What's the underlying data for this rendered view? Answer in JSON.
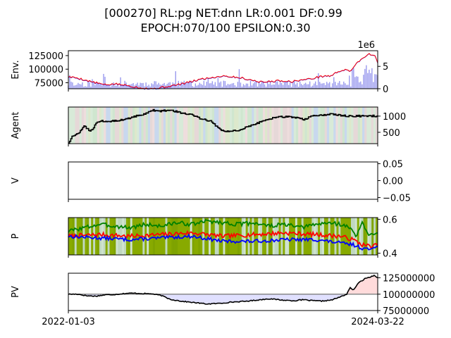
{
  "title_line1": "[000270] RL:pg NET:dnn LR:0.001 DF:0.99",
  "title_line2": "EPOCH:070/100 EPSILON:0.30",
  "chart_data": [
    {
      "type": "line",
      "panel": "env",
      "ylabel": "Env.",
      "left_ticks": [
        "125000",
        "100000",
        "75000"
      ],
      "left_tick_values": [
        125000,
        100000,
        75000
      ],
      "left_ylim": [
        64000,
        134000
      ],
      "right_offset_label": "1e6",
      "right_ticks": [
        "5",
        "0"
      ],
      "right_tick_values": [
        5,
        0
      ],
      "right_ylim": [
        0,
        8.5
      ],
      "series": [
        {
          "kind": "price-line",
          "color": "#ff0000",
          "anchors": [
            [
              0,
              86000
            ],
            [
              3,
              84000
            ],
            [
              6,
              79000
            ],
            [
              9,
              75000
            ],
            [
              12,
              71000
            ],
            [
              15,
              73000
            ],
            [
              19,
              70000
            ],
            [
              23,
              66000
            ],
            [
              27,
              64000
            ],
            [
              31,
              67000
            ],
            [
              35,
              71000
            ],
            [
              39,
              76000
            ],
            [
              43,
              82000
            ],
            [
              47,
              85000
            ],
            [
              50,
              88000
            ],
            [
              53,
              86000
            ],
            [
              56,
              84000
            ],
            [
              60,
              79000
            ],
            [
              63,
              76000
            ],
            [
              66,
              78000
            ],
            [
              69,
              79000
            ],
            [
              72,
              77000
            ],
            [
              75,
              80000
            ],
            [
              78,
              82000
            ],
            [
              82,
              87000
            ],
            [
              85,
              88000
            ],
            [
              87,
              95000
            ],
            [
              89,
              99000
            ],
            [
              91,
              96000
            ],
            [
              93,
              110000
            ],
            [
              95,
              120000
            ],
            [
              97,
              128000
            ],
            [
              99,
              126000
            ],
            [
              100,
              110000
            ]
          ]
        },
        {
          "kind": "volume-bars",
          "color": "#9999ee"
        }
      ]
    },
    {
      "type": "line",
      "panel": "agent",
      "ylabel": "Agent",
      "ticks": [
        "1000",
        "500"
      ],
      "tick_values": [
        1000,
        500
      ],
      "ylim": [
        150,
        1280
      ],
      "series": [
        {
          "kind": "holdings-step",
          "color": "#000000",
          "anchors": [
            [
              0,
              180
            ],
            [
              1,
              350
            ],
            [
              3,
              450
            ],
            [
              5,
              700
            ],
            [
              7,
              520
            ],
            [
              9,
              780
            ],
            [
              11,
              850
            ],
            [
              14,
              850
            ],
            [
              17,
              880
            ],
            [
              20,
              950
            ],
            [
              24,
              1050
            ],
            [
              27,
              1180
            ],
            [
              30,
              1150
            ],
            [
              33,
              1200
            ],
            [
              36,
              1100
            ],
            [
              40,
              1030
            ],
            [
              43,
              900
            ],
            [
              46,
              860
            ],
            [
              49,
              580
            ],
            [
              52,
              520
            ],
            [
              55,
              560
            ],
            [
              58,
              680
            ],
            [
              61,
              780
            ],
            [
              64,
              900
            ],
            [
              67,
              960
            ],
            [
              70,
              980
            ],
            [
              73,
              960
            ],
            [
              76,
              900
            ],
            [
              79,
              1000
            ],
            [
              82,
              1020
            ],
            [
              85,
              1060
            ],
            [
              88,
              1020
            ],
            [
              91,
              1000
            ],
            [
              94,
              1000
            ],
            [
              97,
              1010
            ],
            [
              100,
              1000
            ]
          ]
        }
      ]
    },
    {
      "type": "line",
      "panel": "value",
      "ylabel": "V",
      "ticks": [
        "0.05",
        "0.00",
        "−0.05"
      ],
      "tick_values": [
        0.05,
        0.0,
        -0.05
      ],
      "ylim": [
        -0.055,
        0.055
      ],
      "series": []
    },
    {
      "type": "line",
      "panel": "policy",
      "ylabel": "P",
      "ticks": [
        "0.6",
        "0.4"
      ],
      "tick_values": [
        0.6,
        0.4
      ],
      "ylim": [
        0.39,
        0.61
      ],
      "series": [
        {
          "kind": "policy",
          "color": "#008000",
          "anchors": [
            [
              0,
              0.53
            ],
            [
              5,
              0.55
            ],
            [
              10,
              0.57
            ],
            [
              15,
              0.56
            ],
            [
              20,
              0.55
            ],
            [
              25,
              0.57
            ],
            [
              30,
              0.56
            ],
            [
              35,
              0.58
            ],
            [
              40,
              0.57
            ],
            [
              45,
              0.59
            ],
            [
              50,
              0.58
            ],
            [
              55,
              0.57
            ],
            [
              60,
              0.58
            ],
            [
              65,
              0.56
            ],
            [
              70,
              0.57
            ],
            [
              75,
              0.55
            ],
            [
              80,
              0.57
            ],
            [
              85,
              0.58
            ],
            [
              88,
              0.57
            ],
            [
              91,
              0.55
            ],
            [
              93,
              0.5
            ],
            [
              95,
              0.58
            ],
            [
              97,
              0.5
            ],
            [
              100,
              0.53
            ]
          ]
        },
        {
          "kind": "policy",
          "color": "#ff0000",
          "anchors": [
            [
              0,
              0.5
            ],
            [
              10,
              0.51
            ],
            [
              20,
              0.5
            ],
            [
              30,
              0.51
            ],
            [
              40,
              0.52
            ],
            [
              50,
              0.5
            ],
            [
              60,
              0.51
            ],
            [
              70,
              0.52
            ],
            [
              80,
              0.51
            ],
            [
              88,
              0.5
            ],
            [
              92,
              0.48
            ],
            [
              95,
              0.45
            ],
            [
              98,
              0.44
            ],
            [
              100,
              0.45
            ]
          ]
        },
        {
          "kind": "policy",
          "color": "#0000ff",
          "anchors": [
            [
              0,
              0.5
            ],
            [
              10,
              0.49
            ],
            [
              20,
              0.48
            ],
            [
              30,
              0.49
            ],
            [
              40,
              0.5
            ],
            [
              50,
              0.47
            ],
            [
              60,
              0.47
            ],
            [
              70,
              0.48
            ],
            [
              80,
              0.48
            ],
            [
              88,
              0.46
            ],
            [
              92,
              0.45
            ],
            [
              95,
              0.43
            ],
            [
              97,
              0.42
            ],
            [
              100,
              0.45
            ]
          ]
        }
      ]
    },
    {
      "type": "area",
      "panel": "portfolio",
      "ylabel": "PV",
      "ticks": [
        "125000000",
        "100000000",
        "75000000"
      ],
      "tick_values": [
        125000000,
        100000000,
        75000000
      ],
      "ylim": [
        75000000,
        132000000
      ],
      "baseline": 100000000,
      "x_tick_labels": [
        "2022-01-03",
        "2024-03-22"
      ],
      "series": [
        {
          "kind": "portfolio-value",
          "color": "#000000",
          "anchors": [
            [
              0,
              100000000
            ],
            [
              3,
              100000000
            ],
            [
              6,
              97500000
            ],
            [
              9,
              97000000
            ],
            [
              12,
              99000000
            ],
            [
              15,
              99500000
            ],
            [
              18,
              101000000
            ],
            [
              21,
              101500000
            ],
            [
              24,
              101000000
            ],
            [
              27,
              100500000
            ],
            [
              30,
              98000000
            ],
            [
              33,
              92000000
            ],
            [
              37,
              89000000
            ],
            [
              41,
              87000000
            ],
            [
              45,
              85000000
            ],
            [
              49,
              86000000
            ],
            [
              53,
              88000000
            ],
            [
              57,
              89000000
            ],
            [
              61,
              91000000
            ],
            [
              65,
              93000000
            ],
            [
              69,
              91000000
            ],
            [
              73,
              90000000
            ],
            [
              76,
              91500000
            ],
            [
              79,
              90000000
            ],
            [
              82,
              89500000
            ],
            [
              85,
              91000000
            ],
            [
              88,
              96000000
            ],
            [
              90,
              100000000
            ],
            [
              91,
              110000000
            ],
            [
              92,
              106000000
            ],
            [
              94,
              118000000
            ],
            [
              96,
              124000000
            ],
            [
              98,
              127000000
            ],
            [
              99,
              129000000
            ],
            [
              100,
              125000000
            ]
          ]
        }
      ],
      "fill_above_color": "#ff9999",
      "fill_below_color": "#9999ff"
    }
  ]
}
